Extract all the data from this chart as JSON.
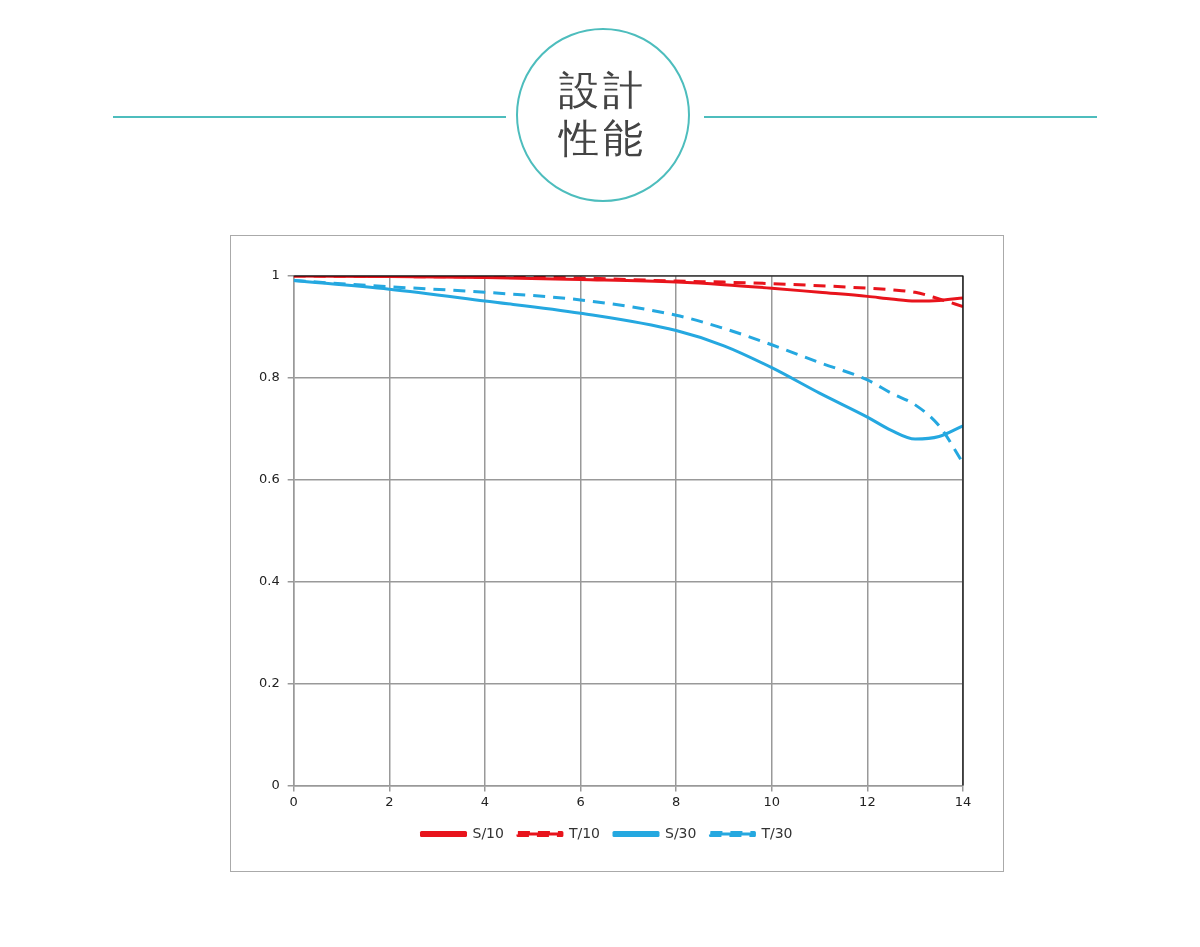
{
  "chart_data": {
    "type": "line",
    "title": "設計性能",
    "x": [
      0,
      2,
      4,
      6,
      8,
      9,
      10,
      11,
      12,
      12.5,
      13,
      13.5,
      14
    ],
    "series": [
      {
        "name": "S/10",
        "color": "#e8141c",
        "line_style": "solid",
        "values": [
          1.0,
          0.999,
          0.997,
          0.993,
          0.988,
          0.983,
          0.976,
          0.968,
          0.96,
          0.955,
          0.951,
          0.952,
          0.957
        ]
      },
      {
        "name": "T/10",
        "color": "#e8141c",
        "line_style": "dashed",
        "values": [
          1.0,
          0.999,
          0.998,
          0.996,
          0.99,
          0.988,
          0.985,
          0.981,
          0.976,
          0.973,
          0.968,
          0.955,
          0.94
        ]
      },
      {
        "name": "S/30",
        "color": "#25a8e0",
        "line_style": "solid",
        "values": [
          0.991,
          0.974,
          0.951,
          0.927,
          0.893,
          0.863,
          0.82,
          0.77,
          0.723,
          0.697,
          0.68,
          0.685,
          0.706
        ]
      },
      {
        "name": "T/30",
        "color": "#25a8e0",
        "line_style": "dashed",
        "values": [
          0.991,
          0.979,
          0.968,
          0.953,
          0.923,
          0.897,
          0.865,
          0.83,
          0.796,
          0.77,
          0.747,
          0.706,
          0.633
        ]
      }
    ],
    "xlim": [
      0,
      14
    ],
    "xticks": [
      0,
      2,
      4,
      6,
      8,
      10,
      12,
      14
    ],
    "ylim": [
      0,
      1
    ],
    "yticks": [
      0,
      0.2,
      0.4,
      0.6,
      0.8,
      1
    ],
    "grid": true,
    "legend": "bottom",
    "marker": "none"
  }
}
